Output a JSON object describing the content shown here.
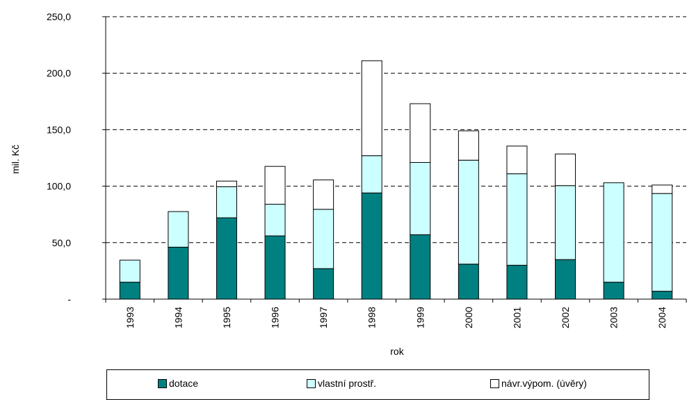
{
  "chart_data": {
    "type": "bar",
    "stacked": true,
    "title": "",
    "xlabel": "rok",
    "ylabel": "mil. Kč",
    "categories": [
      "1993",
      "1994",
      "1995",
      "1996",
      "1997",
      "1998",
      "1999",
      "2000",
      "2001",
      "2002",
      "2003",
      "2004"
    ],
    "ylim": [
      0,
      250
    ],
    "yticks": [
      0,
      50,
      100,
      150,
      200,
      250
    ],
    "ytick_labels": [
      "-",
      "50,0",
      "100,0",
      "150,0",
      "200,0",
      "250,0"
    ],
    "grid": true,
    "legend_position": "bottom",
    "series": [
      {
        "name": "dotace",
        "color": "#008080",
        "values": [
          15,
          46,
          72,
          56,
          27,
          94,
          57,
          31,
          30,
          35,
          15,
          7
        ]
      },
      {
        "name": "vlastní prostř.",
        "color": "#ccffff",
        "values": [
          19.5,
          31.5,
          27.5,
          28,
          52.5,
          33,
          64,
          92,
          81,
          65.5,
          88,
          86.5
        ]
      },
      {
        "name": "návr.výpom. (úvěry)",
        "color": "#ffffff",
        "values": [
          0,
          0,
          5,
          33.5,
          26,
          84,
          52,
          26,
          24.5,
          28,
          0,
          7.5
        ]
      }
    ]
  }
}
